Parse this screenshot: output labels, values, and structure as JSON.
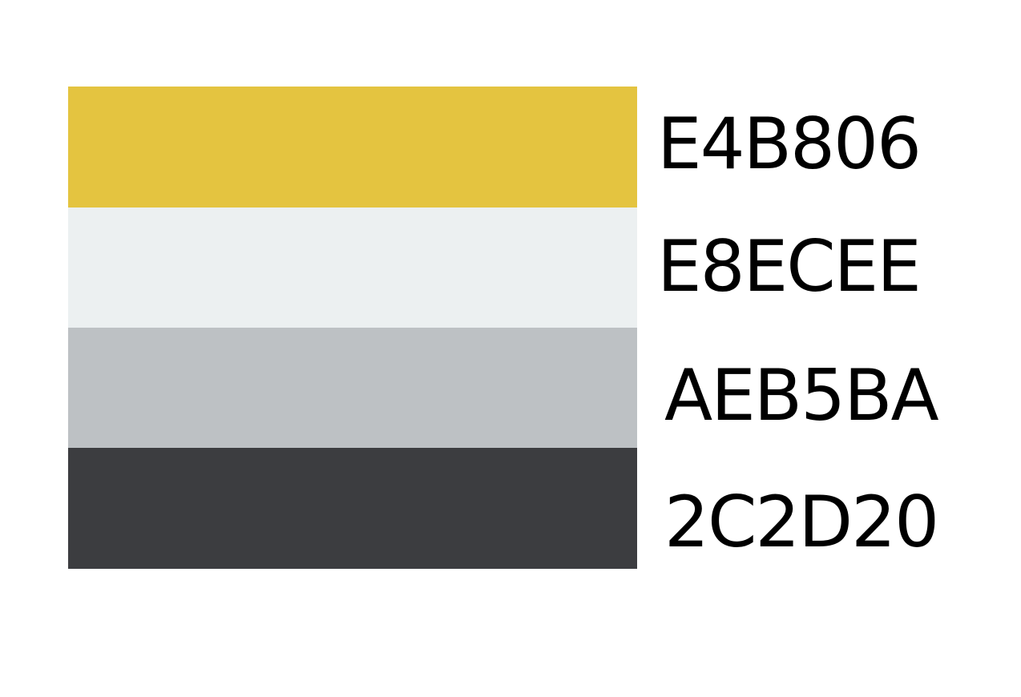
{
  "palette": {
    "swatches": [
      {
        "label": "E4B806",
        "color": "#E4C440"
      },
      {
        "label": "E8ECEE",
        "color": "#ECF0F1"
      },
      {
        "label": "AEB5BA",
        "color": "#BDC1C4"
      },
      {
        "label": "2C2D20",
        "color": "#3C3D40"
      }
    ]
  }
}
